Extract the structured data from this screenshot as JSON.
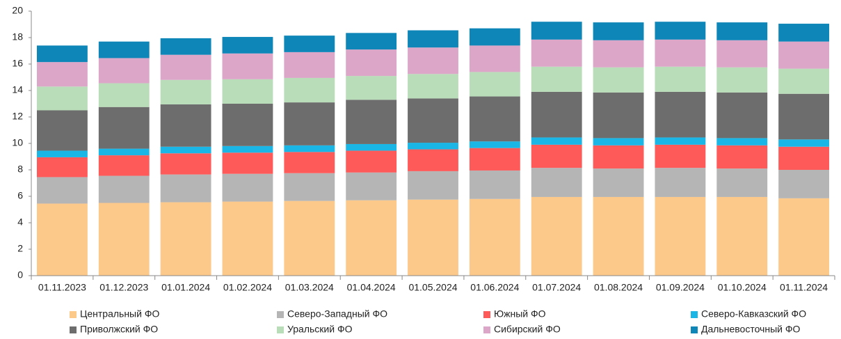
{
  "chart_data": {
    "type": "bar",
    "stacked": true,
    "categories": [
      "01.11.2023",
      "01.12.2023",
      "01.01.2024",
      "01.02.2024",
      "01.03.2024",
      "01.04.2024",
      "01.05.2024",
      "01.06.2024",
      "01.07.2024",
      "01.08.2024",
      "01.09.2024",
      "01.10.2024",
      "01.11.2024"
    ],
    "series": [
      {
        "name": "Центральный ФО",
        "color": "#fdc98a",
        "values": [
          5.45,
          5.5,
          5.55,
          5.6,
          5.65,
          5.7,
          5.75,
          5.8,
          5.95,
          5.95,
          5.95,
          5.95,
          5.85
        ]
      },
      {
        "name": "Северо-Западный ФО",
        "color": "#b5b5b5",
        "values": [
          2.0,
          2.05,
          2.1,
          2.1,
          2.1,
          2.1,
          2.15,
          2.15,
          2.2,
          2.15,
          2.2,
          2.15,
          2.15
        ]
      },
      {
        "name": "Южный ФО",
        "color": "#ff5a5a",
        "values": [
          1.5,
          1.55,
          1.6,
          1.6,
          1.6,
          1.65,
          1.65,
          1.7,
          1.75,
          1.75,
          1.75,
          1.75,
          1.75
        ]
      },
      {
        "name": "Северо-Кавказский ФО",
        "color": "#19b6e6",
        "values": [
          0.5,
          0.5,
          0.5,
          0.5,
          0.5,
          0.5,
          0.5,
          0.5,
          0.55,
          0.55,
          0.55,
          0.55,
          0.55
        ]
      },
      {
        "name": "Приволжский ФО",
        "color": "#6d6d6d",
        "values": [
          3.05,
          3.15,
          3.2,
          3.2,
          3.25,
          3.35,
          3.35,
          3.4,
          3.45,
          3.45,
          3.45,
          3.45,
          3.45
        ]
      },
      {
        "name": "Уральский ФО",
        "color": "#b9dcb9",
        "values": [
          1.8,
          1.8,
          1.85,
          1.85,
          1.85,
          1.8,
          1.85,
          1.85,
          1.9,
          1.9,
          1.9,
          1.9,
          1.9
        ]
      },
      {
        "name": "Сибирский ФО",
        "color": "#dba6c8",
        "values": [
          1.85,
          1.9,
          1.9,
          1.95,
          1.95,
          2.0,
          2.0,
          2.0,
          2.05,
          2.05,
          2.05,
          2.05,
          2.05
        ]
      },
      {
        "name": "Дальневосточный ФО",
        "color": "#0f86b8",
        "values": [
          1.25,
          1.25,
          1.25,
          1.25,
          1.25,
          1.25,
          1.3,
          1.3,
          1.35,
          1.35,
          1.35,
          1.35,
          1.35
        ]
      }
    ],
    "ylim": [
      0,
      20
    ],
    "yticks": [
      0,
      2,
      4,
      6,
      8,
      10,
      12,
      14,
      16,
      18,
      20
    ],
    "grid": false,
    "legend": "bottom"
  }
}
